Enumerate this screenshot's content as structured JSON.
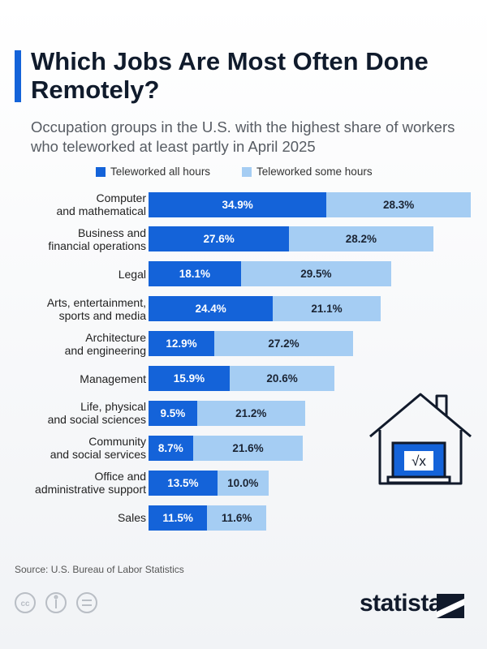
{
  "chart_data": {
    "type": "stacked_bar_horizontal",
    "title": "Which Jobs Are Most Often Done Remotely?",
    "subtitle": "Occupation groups in the U.S. with the highest share of workers who teleworked at least partly in April 2025",
    "categories": [
      "Computer\nand mathematical",
      "Business and\nfinancial operations",
      "Legal",
      "Arts, entertainment,\nsports and media",
      "Architecture\nand engineering",
      "Management",
      "Life, physical\nand social sciences",
      "Community\nand social services",
      "Office and\nadministrative support",
      "Sales"
    ],
    "series": [
      {
        "name": "Teleworked all hours",
        "color": "#1463d9",
        "values": [
          34.9,
          27.6,
          18.1,
          24.4,
          12.9,
          15.9,
          9.5,
          8.7,
          13.5,
          11.5
        ],
        "value_labels": [
          "34.9%",
          "27.6%",
          "18.1%",
          "24.4%",
          "12.9%",
          "15.9%",
          "9.5%",
          "8.7%",
          "13.5%",
          "11.5%"
        ]
      },
      {
        "name": "Teleworked some hours",
        "color": "#a5cdf3",
        "values": [
          28.3,
          28.2,
          29.5,
          21.1,
          27.2,
          20.6,
          21.2,
          21.6,
          10.0,
          11.6
        ],
        "value_labels": [
          "28.3%",
          "28.2%",
          "29.5%",
          "21.1%",
          "27.2%",
          "20.6%",
          "21.2%",
          "21.6%",
          "10.0%",
          "11.6%"
        ]
      }
    ],
    "source": "Source: U.S. Bureau of Labor Statistics",
    "brand": "statista"
  }
}
